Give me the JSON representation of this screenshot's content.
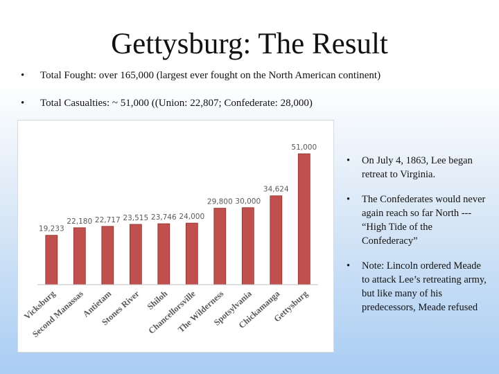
{
  "slide": {
    "title": "Gettysburg: The Result",
    "bullet_glyph": "•",
    "bullets": [
      "Total Fought: over 165,000 (largest ever fought on the North American continent)",
      "Total Casualties: ~ 51,000 ((Union: 22,807; Confederate: 28,000)"
    ],
    "side_bullets": [
      "On July 4, 1863, Lee began retreat to Virginia.",
      "The Confederates would never again reach so far North --- “High Tide of the Confederacy”",
      "Note: Lincoln ordered Meade to attack Lee’s retreating army, but like many of his predecessors, Meade refused"
    ]
  },
  "chart_data": {
    "type": "bar",
    "categories": [
      "Vicksburg",
      "Second Manassas",
      "Antietam",
      "Stones River",
      "Shiloh",
      "Chancellorsville",
      "The Wilderness",
      "Spotsylvania",
      "Chickamauga",
      "Gettysburg"
    ],
    "values": [
      19233,
      22180,
      22717,
      23515,
      23746,
      24000,
      29800,
      30000,
      34624,
      51000
    ],
    "data_labels": [
      "19,233",
      "22,180",
      "22,717",
      "23,515",
      "23,746",
      "24,000",
      "29,800",
      "30,000",
      "34,624",
      "51,000"
    ],
    "title": "",
    "xlabel": "",
    "ylabel": "",
    "ylim": [
      0,
      51000
    ],
    "grid": false,
    "legend": "none",
    "bar_color": "#c0504d",
    "bar_outline": "#8b2f2c",
    "label_color": "#595959"
  }
}
